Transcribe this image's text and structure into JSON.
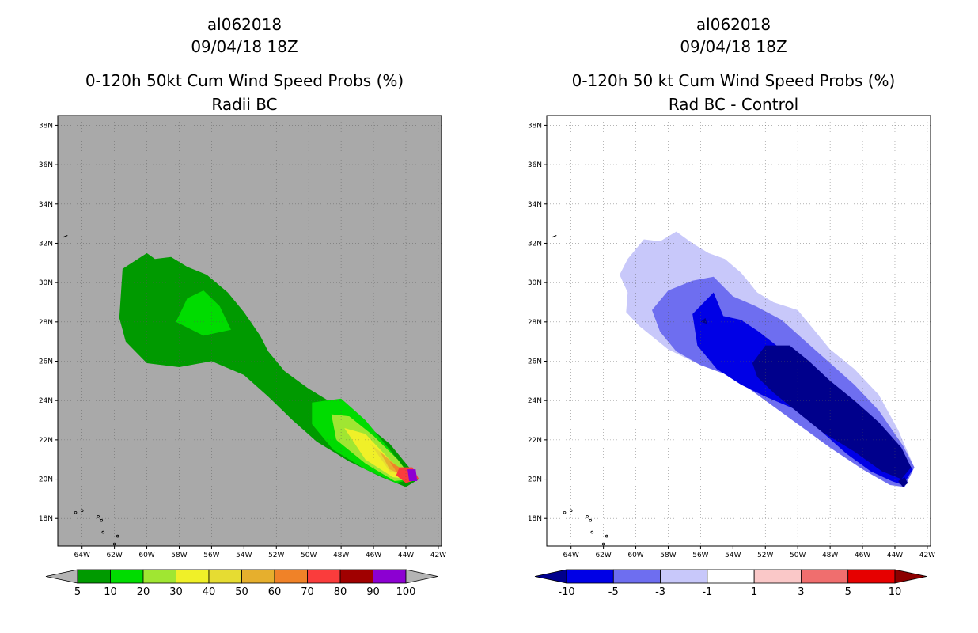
{
  "chart_data": [
    {
      "type": "heatmap",
      "storm_id": "al062018",
      "date": "09/04/18 18Z",
      "title": "0-120h 50kt Cum Wind Speed Probs (%)",
      "subtitle": "Radii BC",
      "xlim": [
        -65.5,
        -41.8
      ],
      "ylim": [
        16.6,
        38.5
      ],
      "xticks": [
        "64W",
        "62W",
        "60W",
        "58W",
        "56W",
        "54W",
        "52W",
        "50W",
        "48W",
        "46W",
        "44W",
        "42W"
      ],
      "yticks": [
        "18N",
        "20N",
        "22N",
        "24N",
        "26N",
        "28N",
        "30N",
        "32N",
        "34N",
        "36N",
        "38N"
      ],
      "gridlines": true,
      "background_color": "#a9a9a9",
      "colorbar": {
        "levels": [
          "5",
          "10",
          "20",
          "30",
          "40",
          "50",
          "60",
          "70",
          "80",
          "90",
          "100"
        ],
        "colors": [
          "#009a00",
          "#00dc00",
          "#a0e632",
          "#f0f028",
          "#e6dc32",
          "#e6af2d",
          "#f08228",
          "#fa3c3c",
          "#a00000",
          "#8c00d2"
        ],
        "under_color": "#b4b4b4",
        "over_color": "#b4b4b4"
      },
      "contours": [
        {
          "level": 5,
          "color": "#009a00",
          "polygon": [
            [
              -61.7,
              28.2
            ],
            [
              -61.5,
              30.7
            ],
            [
              -60.0,
              31.5
            ],
            [
              -59.5,
              31.2
            ],
            [
              -58.5,
              31.3
            ],
            [
              -57.5,
              30.8
            ],
            [
              -56.3,
              30.4
            ],
            [
              -55.0,
              29.5
            ],
            [
              -54.0,
              28.5
            ],
            [
              -53.0,
              27.3
            ],
            [
              -52.5,
              26.5
            ],
            [
              -51.5,
              25.5
            ],
            [
              -50.0,
              24.6
            ],
            [
              -48.0,
              23.6
            ],
            [
              -46.5,
              22.8
            ],
            [
              -45.0,
              21.8
            ],
            [
              -43.2,
              20.0
            ],
            [
              -44.0,
              19.6
            ],
            [
              -45.5,
              20.1
            ],
            [
              -47.5,
              20.9
            ],
            [
              -49.5,
              21.9
            ],
            [
              -51.0,
              23.0
            ],
            [
              -52.5,
              24.2
            ],
            [
              -54.0,
              25.3
            ],
            [
              -56.0,
              26.0
            ],
            [
              -58.0,
              25.7
            ],
            [
              -60.0,
              25.9
            ],
            [
              -61.3,
              27.0
            ],
            [
              -61.7,
              28.2
            ]
          ]
        },
        {
          "level": 10,
          "color": "#00dc00",
          "polygon": [
            [
              -58.2,
              28.0
            ],
            [
              -57.5,
              29.2
            ],
            [
              -56.5,
              29.6
            ],
            [
              -55.5,
              28.8
            ],
            [
              -54.8,
              27.6
            ],
            [
              -56.5,
              27.3
            ],
            [
              -58.2,
              28.0
            ]
          ]
        },
        {
          "level": 10,
          "color": "#00dc00",
          "polygon": [
            [
              -49.8,
              23.9
            ],
            [
              -48.0,
              24.1
            ],
            [
              -46.5,
              23.0
            ],
            [
              -45.0,
              21.5
            ],
            [
              -43.6,
              20.0
            ],
            [
              -44.6,
              19.8
            ],
            [
              -46.5,
              20.5
            ],
            [
              -48.5,
              21.5
            ],
            [
              -49.8,
              22.8
            ],
            [
              -49.8,
              23.9
            ]
          ]
        },
        {
          "level": 20,
          "color": "#a0e632",
          "polygon": [
            [
              -48.6,
              23.3
            ],
            [
              -47.5,
              23.2
            ],
            [
              -46.0,
              22.2
            ],
            [
              -44.5,
              21.0
            ],
            [
              -43.6,
              20.0
            ],
            [
              -44.7,
              19.9
            ],
            [
              -46.5,
              20.8
            ],
            [
              -48.3,
              22.0
            ],
            [
              -48.6,
              23.3
            ]
          ]
        },
        {
          "level": 30,
          "color": "#f0f028",
          "polygon": [
            [
              -47.8,
              22.6
            ],
            [
              -46.5,
              22.3
            ],
            [
              -45.0,
              21.0
            ],
            [
              -43.8,
              20.0
            ],
            [
              -44.8,
              20.1
            ],
            [
              -46.5,
              21.0
            ],
            [
              -47.8,
              22.6
            ]
          ]
        },
        {
          "level": 40,
          "color": "#e6dc32",
          "polygon": [
            [
              -46.2,
              21.8
            ],
            [
              -45.0,
              21.0
            ],
            [
              -43.8,
              20.1
            ],
            [
              -45.0,
              20.4
            ],
            [
              -46.2,
              21.8
            ]
          ]
        },
        {
          "level": 50,
          "color": "#e6af2d",
          "polygon": [
            [
              -45.6,
              21.4
            ],
            [
              -44.6,
              20.7
            ],
            [
              -43.9,
              20.1
            ],
            [
              -45.0,
              20.5
            ],
            [
              -45.6,
              21.4
            ]
          ]
        },
        {
          "level": 60,
          "color": "#f08228",
          "polygon": [
            [
              -45.0,
              20.9
            ],
            [
              -44.2,
              20.5
            ],
            [
              -43.9,
              20.1
            ],
            [
              -44.6,
              20.4
            ],
            [
              -45.0,
              20.9
            ]
          ]
        },
        {
          "level": 70,
          "color": "#fa3c3c",
          "polygon": [
            [
              -44.4,
              20.6
            ],
            [
              -43.6,
              20.6
            ],
            [
              -43.2,
              20.0
            ],
            [
              -44.0,
              19.8
            ],
            [
              -44.6,
              20.2
            ],
            [
              -44.4,
              20.6
            ]
          ]
        },
        {
          "level": 90,
          "color": "#8c00d2",
          "polygon": [
            [
              -43.9,
              20.5
            ],
            [
              -43.4,
              20.5
            ],
            [
              -43.3,
              19.9
            ],
            [
              -43.8,
              19.9
            ],
            [
              -43.9,
              20.5
            ]
          ]
        }
      ]
    },
    {
      "type": "heatmap",
      "storm_id": "al062018",
      "date": "09/04/18 18Z",
      "title": "0-120h 50 kt Cum Wind Speed Probs (%)",
      "subtitle": "Rad BC - Control",
      "xlim": [
        -65.5,
        -41.8
      ],
      "ylim": [
        16.6,
        38.5
      ],
      "xticks": [
        "64W",
        "62W",
        "60W",
        "58W",
        "56W",
        "54W",
        "52W",
        "50W",
        "48W",
        "46W",
        "44W",
        "42W"
      ],
      "yticks": [
        "18N",
        "20N",
        "22N",
        "24N",
        "26N",
        "28N",
        "30N",
        "32N",
        "34N",
        "36N",
        "38N"
      ],
      "gridlines": true,
      "background_color": "#ffffff",
      "colorbar": {
        "levels": [
          "-10",
          "-5",
          "-3",
          "-1",
          "1",
          "3",
          "5",
          "10"
        ],
        "colors": [
          "#0000e6",
          "#6e6ef0",
          "#c8c8fa",
          "#ffffff",
          "#fac8c8",
          "#f06e6e",
          "#e60000"
        ],
        "under_color": "#00008c",
        "over_color": "#8c0000"
      },
      "contours": [
        {
          "level": -1,
          "color": "#c8c8fa",
          "polygon": [
            [
              -60.5,
              31.2
            ],
            [
              -59.5,
              32.2
            ],
            [
              -58.5,
              32.1
            ],
            [
              -57.5,
              32.6
            ],
            [
              -56.5,
              32.0
            ],
            [
              -55.5,
              31.5
            ],
            [
              -54.5,
              31.2
            ],
            [
              -53.5,
              30.5
            ],
            [
              -52.5,
              29.5
            ],
            [
              -51.5,
              29.0
            ],
            [
              -50.0,
              28.6
            ],
            [
              -49.0,
              27.6
            ],
            [
              -48.0,
              26.6
            ],
            [
              -46.5,
              25.6
            ],
            [
              -45.0,
              24.3
            ],
            [
              -43.8,
              22.5
            ],
            [
              -42.8,
              20.6
            ],
            [
              -43.4,
              19.6
            ],
            [
              -44.5,
              19.8
            ],
            [
              -46.0,
              20.7
            ],
            [
              -48.0,
              21.8
            ],
            [
              -50.0,
              23.3
            ],
            [
              -52.0,
              24.0
            ],
            [
              -54.0,
              25.2
            ],
            [
              -56.0,
              25.8
            ],
            [
              -58.0,
              26.6
            ],
            [
              -59.8,
              27.8
            ],
            [
              -60.6,
              28.5
            ],
            [
              -60.5,
              29.5
            ],
            [
              -61.0,
              30.4
            ],
            [
              -60.5,
              31.2
            ]
          ]
        },
        {
          "level": -3,
          "color": "#6e6ef0",
          "polygon": [
            [
              -59.0,
              28.6
            ],
            [
              -58.0,
              29.6
            ],
            [
              -56.5,
              30.1
            ],
            [
              -55.2,
              30.3
            ],
            [
              -54.0,
              29.3
            ],
            [
              -52.6,
              28.8
            ],
            [
              -51.0,
              28.1
            ],
            [
              -49.5,
              27.0
            ],
            [
              -48.0,
              25.9
            ],
            [
              -46.5,
              24.8
            ],
            [
              -45.0,
              23.5
            ],
            [
              -43.5,
              21.7
            ],
            [
              -42.8,
              20.6
            ],
            [
              -43.4,
              19.6
            ],
            [
              -44.3,
              19.7
            ],
            [
              -46.0,
              20.5
            ],
            [
              -48.0,
              21.6
            ],
            [
              -50.0,
              22.8
            ],
            [
              -52.0,
              24.0
            ],
            [
              -54.0,
              25.2
            ],
            [
              -56.0,
              25.8
            ],
            [
              -57.5,
              26.5
            ],
            [
              -58.5,
              27.5
            ],
            [
              -59.0,
              28.6
            ]
          ]
        },
        {
          "level": -5,
          "color": "#0000e6",
          "polygon": [
            [
              -56.5,
              28.4
            ],
            [
              -55.2,
              29.5
            ],
            [
              -54.6,
              28.3
            ],
            [
              -53.5,
              28.1
            ],
            [
              -52.4,
              27.5
            ],
            [
              -51.0,
              26.6
            ],
            [
              -49.5,
              25.8
            ],
            [
              -48.0,
              24.9
            ],
            [
              -46.5,
              23.9
            ],
            [
              -45.0,
              22.6
            ],
            [
              -43.6,
              21.3
            ],
            [
              -42.9,
              20.5
            ],
            [
              -43.5,
              19.7
            ],
            [
              -44.2,
              19.9
            ],
            [
              -45.5,
              20.4
            ],
            [
              -47.0,
              21.3
            ],
            [
              -48.5,
              22.4
            ],
            [
              -50.0,
              23.5
            ],
            [
              -52.0,
              24.2
            ],
            [
              -53.5,
              24.8
            ],
            [
              -55.0,
              25.6
            ],
            [
              -56.2,
              26.8
            ],
            [
              -56.5,
              28.4
            ]
          ]
        },
        {
          "level": -10,
          "color": "#00008c",
          "polygon": [
            [
              -52.8,
              25.9
            ],
            [
              -52.0,
              26.8
            ],
            [
              -50.5,
              26.8
            ],
            [
              -49.3,
              26.0
            ],
            [
              -48.0,
              25.0
            ],
            [
              -46.5,
              24.0
            ],
            [
              -45.0,
              22.9
            ],
            [
              -43.6,
              21.6
            ],
            [
              -43.0,
              20.6
            ],
            [
              -43.6,
              20.0
            ],
            [
              -44.8,
              20.4
            ],
            [
              -46.5,
              21.4
            ],
            [
              -48.5,
              22.4
            ],
            [
              -50.0,
              23.4
            ],
            [
              -51.5,
              24.4
            ],
            [
              -52.5,
              25.2
            ],
            [
              -52.8,
              25.9
            ]
          ]
        },
        {
          "level": -10,
          "color": "#00008c",
          "polygon": [
            [
              -43.8,
              19.9
            ],
            [
              -43.4,
              20.1
            ],
            [
              -43.2,
              19.8
            ],
            [
              -43.5,
              19.6
            ],
            [
              -43.8,
              19.9
            ]
          ]
        },
        {
          "level": -10,
          "color": "#00008c",
          "polygon": [
            [
              -56.0,
              28.0
            ],
            [
              -55.7,
              28.2
            ],
            [
              -55.6,
              27.9
            ],
            [
              -56.0,
              28.0
            ]
          ]
        }
      ]
    }
  ]
}
